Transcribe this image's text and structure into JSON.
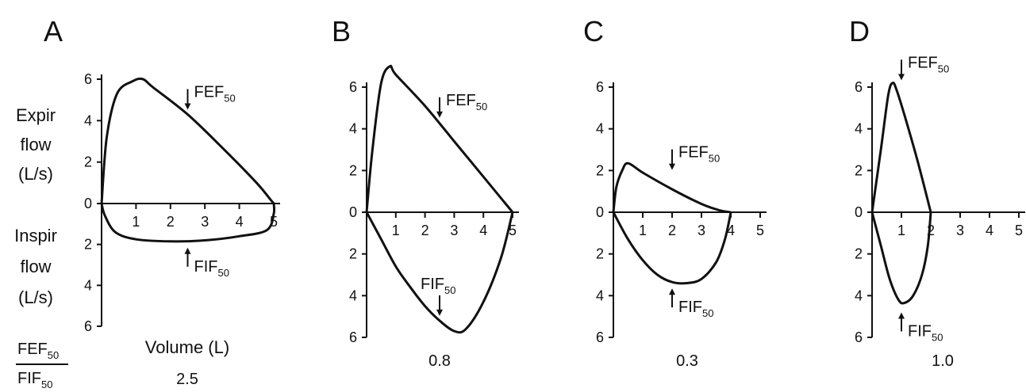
{
  "labels": {
    "expir": [
      "Expir",
      "flow",
      "(L/s)"
    ],
    "inspir": [
      "Inspir",
      "flow",
      "(L/s)"
    ],
    "volume": "Volume (L)",
    "ratio_num": "FEF",
    "ratio_den": "FIF",
    "sub": "50",
    "fef": "FEF",
    "fif": "FIF"
  },
  "chart_data": [
    {
      "type": "line",
      "panel": "A",
      "ratio": "2.5",
      "x_ticks": [
        1,
        2,
        3,
        4,
        5
      ],
      "y_ticks_expir": [
        6,
        4,
        2,
        0
      ],
      "y_ticks_inspir": [
        2,
        4,
        6
      ],
      "xlim": [
        0,
        5
      ],
      "ylim": [
        -6,
        6
      ],
      "xlabel": "Volume (L)",
      "expiratory": [
        [
          0,
          0
        ],
        [
          0.15,
          3.2
        ],
        [
          0.45,
          5.3
        ],
        [
          0.9,
          5.9
        ],
        [
          1.2,
          6.0
        ],
        [
          1.5,
          5.6
        ],
        [
          2.5,
          4.3
        ],
        [
          3.5,
          2.7
        ],
        [
          4.5,
          1.0
        ],
        [
          4.9,
          0.2
        ],
        [
          5.0,
          0
        ]
      ],
      "inspiratory": [
        [
          0,
          0
        ],
        [
          0.1,
          -0.6
        ],
        [
          0.4,
          -1.4
        ],
        [
          1.0,
          -1.75
        ],
        [
          2.0,
          -1.85
        ],
        [
          3.0,
          -1.8
        ],
        [
          4.0,
          -1.6
        ],
        [
          4.8,
          -1.3
        ],
        [
          5.0,
          -0.5
        ],
        [
          5.0,
          0
        ]
      ],
      "fef_arrow": {
        "x": 2.5,
        "y": 4.3
      },
      "fif_arrow": {
        "x": 2.5,
        "y": -1.85
      }
    },
    {
      "type": "line",
      "panel": "B",
      "ratio": "0.8",
      "x_ticks": [
        1,
        2,
        3,
        4,
        5
      ],
      "y_ticks_expir": [
        6,
        4,
        2,
        0
      ],
      "y_ticks_inspir": [
        2,
        4,
        6
      ],
      "xlim": [
        0,
        5
      ],
      "ylim": [
        -6,
        6
      ],
      "expiratory": [
        [
          0,
          0
        ],
        [
          0.2,
          3.0
        ],
        [
          0.5,
          6.2
        ],
        [
          0.8,
          7.0
        ],
        [
          1.0,
          6.6
        ],
        [
          2.0,
          5.1
        ],
        [
          3.0,
          3.4
        ],
        [
          4.0,
          1.7
        ],
        [
          5.0,
          0
        ]
      ],
      "inspiratory": [
        [
          0,
          0
        ],
        [
          0.5,
          -1.3
        ],
        [
          1.0,
          -2.6
        ],
        [
          1.5,
          -3.6
        ],
        [
          2.0,
          -4.5
        ],
        [
          2.5,
          -5.2
        ],
        [
          3.0,
          -5.7
        ],
        [
          3.4,
          -5.6
        ],
        [
          4.0,
          -4.3
        ],
        [
          4.6,
          -2.2
        ],
        [
          5.0,
          0
        ]
      ],
      "fef_arrow": {
        "x": 2.5,
        "y": 4.3
      },
      "fif_arrow": {
        "x": 2.5,
        "y": -5.2
      }
    },
    {
      "type": "line",
      "panel": "C",
      "ratio": "0.3",
      "x_ticks": [
        1,
        2,
        3,
        4,
        5
      ],
      "y_ticks_expir": [
        6,
        4,
        2,
        0
      ],
      "y_ticks_inspir": [
        2,
        4,
        6
      ],
      "xlim": [
        0,
        5
      ],
      "ylim": [
        -6,
        6
      ],
      "expiratory": [
        [
          0,
          0
        ],
        [
          0.1,
          1.2
        ],
        [
          0.3,
          2.0
        ],
        [
          0.5,
          2.35
        ],
        [
          1.0,
          1.9
        ],
        [
          2.0,
          1.1
        ],
        [
          3.0,
          0.4
        ],
        [
          3.6,
          0.1
        ],
        [
          4.0,
          0
        ]
      ],
      "inspiratory": [
        [
          0,
          0
        ],
        [
          0.5,
          -1.3
        ],
        [
          1.0,
          -2.3
        ],
        [
          1.5,
          -3.0
        ],
        [
          2.0,
          -3.35
        ],
        [
          2.5,
          -3.4
        ],
        [
          3.0,
          -3.2
        ],
        [
          3.5,
          -2.4
        ],
        [
          3.8,
          -1.3
        ],
        [
          4.0,
          0
        ]
      ],
      "fef_arrow": {
        "x": 2.0,
        "y": 1.8
      },
      "fif_arrow": {
        "x": 2.0,
        "y": -3.35
      }
    },
    {
      "type": "line",
      "panel": "D",
      "ratio": "1.0",
      "x_ticks": [
        1,
        2,
        3,
        4,
        5
      ],
      "y_ticks_expir": [
        6,
        4,
        2,
        0
      ],
      "y_ticks_inspir": [
        2,
        4,
        6
      ],
      "xlim": [
        0,
        5
      ],
      "ylim": [
        -6,
        6
      ],
      "expiratory": [
        [
          0,
          0
        ],
        [
          0.3,
          3.0
        ],
        [
          0.55,
          5.6
        ],
        [
          0.7,
          6.2
        ],
        [
          0.85,
          5.8
        ],
        [
          1.2,
          4.2
        ],
        [
          1.6,
          2.2
        ],
        [
          2.0,
          0
        ]
      ],
      "inspiratory": [
        [
          0,
          0
        ],
        [
          0.3,
          -1.6
        ],
        [
          0.6,
          -3.2
        ],
        [
          0.9,
          -4.2
        ],
        [
          1.1,
          -4.35
        ],
        [
          1.4,
          -4.0
        ],
        [
          1.7,
          -3.0
        ],
        [
          1.9,
          -1.6
        ],
        [
          2.0,
          0
        ]
      ],
      "fef_arrow": {
        "x": 1.0,
        "y": 6.1
      },
      "fif_arrow": {
        "x": 1.0,
        "y": -4.5
      }
    }
  ]
}
